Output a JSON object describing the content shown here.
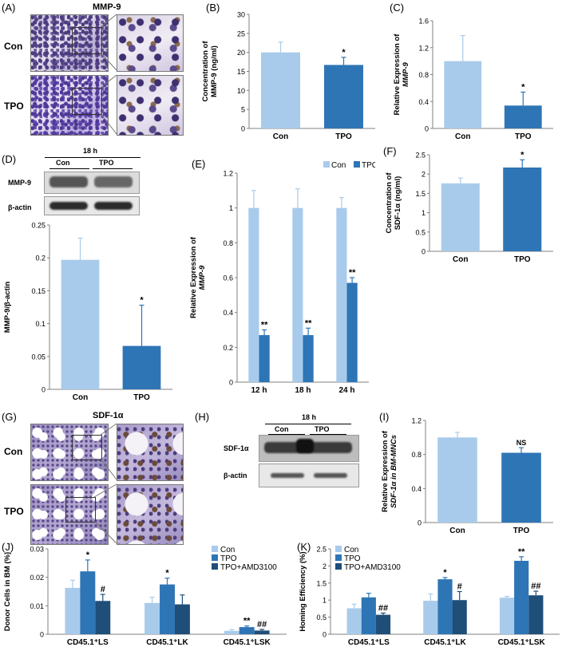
{
  "colors": {
    "con": "#a9cbeb",
    "tpo": "#2e75b6",
    "tpo_amd": "#1f4e79",
    "axis": "#808080"
  },
  "panels": {
    "A": {
      "label": "(A)",
      "title": "MMP-9",
      "rows": [
        "Con",
        "TPO"
      ]
    },
    "B": {
      "label": "(B)"
    },
    "C": {
      "label": "(C)"
    },
    "D": {
      "label": "(D)",
      "time": "18 h",
      "lanes": [
        "Con",
        "TPO"
      ],
      "bands": [
        "MMP-9",
        "β-actin"
      ]
    },
    "E": {
      "label": "(E)"
    },
    "F": {
      "label": "(F)"
    },
    "G": {
      "label": "(G)",
      "title": "SDF-1α",
      "rows": [
        "Con",
        "TPO"
      ]
    },
    "H": {
      "label": "(H)",
      "time": "18 h",
      "lanes": [
        "Con",
        "TPO"
      ],
      "bands": [
        "SDF-1α",
        "β-actin"
      ]
    },
    "I": {
      "label": "(I)"
    },
    "J": {
      "label": "(J)"
    },
    "K": {
      "label": "(K)"
    }
  },
  "chart_data": [
    {
      "id": "B",
      "type": "bar",
      "categories": [
        "Con",
        "TPO"
      ],
      "values": [
        20.0,
        16.7
      ],
      "errors": [
        2.7,
        2.0
      ],
      "stars": [
        "",
        "*"
      ],
      "ylabel": [
        "Concentration of",
        "MMP-9 (ng/ml)"
      ],
      "ylim": [
        0,
        30
      ],
      "ticks": [
        "0",
        "5",
        "10",
        "15",
        "20",
        "25",
        "30"
      ]
    },
    {
      "id": "C",
      "type": "bar",
      "categories": [
        "Con",
        "TPO"
      ],
      "values": [
        1.0,
        0.34
      ],
      "errors": [
        0.38,
        0.2
      ],
      "stars": [
        "",
        "*"
      ],
      "ylabel": [
        "Relative Expression of",
        "MMP-9"
      ],
      "ylim": [
        0,
        1.6
      ],
      "ticks": [
        "0",
        "0.4",
        "0.8",
        "1.2",
        "1.6"
      ]
    },
    {
      "id": "D",
      "type": "bar",
      "categories": [
        "Con",
        "TPO"
      ],
      "values": [
        0.197,
        0.066
      ],
      "errors": [
        0.033,
        0.062
      ],
      "stars": [
        "",
        "*"
      ],
      "ylabel": [
        "MMP-9/β-actin"
      ],
      "ylim": [
        0,
        0.25
      ],
      "ticks": [
        "0",
        "0.05",
        "0.1",
        "0.15",
        "0.2",
        "0.25"
      ]
    },
    {
      "id": "E",
      "type": "bar",
      "categories": [
        "12 h",
        "18 h",
        "24 h"
      ],
      "series": [
        {
          "name": "Con",
          "values": [
            1.0,
            1.0,
            1.0
          ],
          "errors": [
            0.1,
            0.11,
            0.06
          ],
          "stars": [
            "",
            "",
            ""
          ]
        },
        {
          "name": "TPO",
          "values": [
            0.27,
            0.27,
            0.57
          ],
          "errors": [
            0.03,
            0.04,
            0.03
          ],
          "stars": [
            "**",
            "**",
            "**"
          ]
        }
      ],
      "ylabel": [
        "Relative Expression of",
        "MMP-9"
      ],
      "ylim": [
        0,
        1.2
      ],
      "ticks": [
        "0",
        "0.2",
        "0.4",
        "0.6",
        "0.8",
        "1",
        "1.2"
      ],
      "legend": "top-right"
    },
    {
      "id": "F",
      "type": "bar",
      "categories": [
        "Con",
        "TPO"
      ],
      "values": [
        1.76,
        2.17
      ],
      "errors": [
        0.14,
        0.2
      ],
      "stars": [
        "",
        "*"
      ],
      "ylabel": [
        "Concentration of",
        "SDF-1α (ng/ml)"
      ],
      "ylim": [
        0,
        2.5
      ],
      "ticks": [
        "0",
        "0.5",
        "1",
        "1.5",
        "2",
        "2.5"
      ]
    },
    {
      "id": "I",
      "type": "bar",
      "categories": [
        "Con",
        "TPO"
      ],
      "values": [
        1.0,
        0.82
      ],
      "errors": [
        0.06,
        0.06
      ],
      "stars": [
        "",
        "NS"
      ],
      "ylabel": [
        "Relative Expression of",
        "SDF-1α in BM-MNCs"
      ],
      "ylim": [
        0,
        1.2
      ],
      "ticks": [
        "0",
        "0.4",
        "0.8",
        "1.2"
      ]
    },
    {
      "id": "J",
      "type": "bar",
      "categories": [
        "CD45.1⁺LS",
        "CD45.1⁺LK",
        "CD45.1⁺LSK"
      ],
      "series": [
        {
          "name": "Con",
          "values": [
            0.0163,
            0.011,
            0.0012
          ],
          "errors": [
            0.0027,
            0.002,
            0.0004
          ],
          "stars": [
            "",
            "",
            ""
          ]
        },
        {
          "name": "TPO",
          "values": [
            0.0221,
            0.0175,
            0.0025
          ],
          "errors": [
            0.004,
            0.0022,
            0.0004
          ],
          "stars": [
            "*",
            "*",
            "**"
          ]
        },
        {
          "name": "TPO+AMD3100",
          "values": [
            0.0117,
            0.0105,
            0.0013
          ],
          "errors": [
            0.0023,
            0.0033,
            0.0004
          ],
          "stars": [
            "#",
            "",
            "##"
          ]
        }
      ],
      "ylabel": [
        "Donor Cells in BM (%)"
      ],
      "ylim": [
        0,
        0.03
      ],
      "ticks": [
        "0",
        "0.01",
        "0.02",
        "0.03"
      ],
      "legend": "top-right"
    },
    {
      "id": "K",
      "type": "bar",
      "categories": [
        "CD45.1⁺LS",
        "CD45.1⁺LK",
        "CD45.1⁺LSK"
      ],
      "series": [
        {
          "name": "Con",
          "values": [
            0.76,
            0.98,
            1.07
          ],
          "errors": [
            0.12,
            0.2,
            0.04
          ],
          "stars": [
            "",
            "",
            ""
          ]
        },
        {
          "name": "TPO",
          "values": [
            1.08,
            1.61,
            2.15
          ],
          "errors": [
            0.12,
            0.05,
            0.12
          ],
          "stars": [
            "",
            "*",
            "**"
          ]
        },
        {
          "name": "TPO+AMD3100",
          "values": [
            0.57,
            1.0,
            1.14
          ],
          "errors": [
            0.05,
            0.25,
            0.12
          ],
          "stars": [
            "##",
            "#",
            "##"
          ]
        }
      ],
      "ylabel": [
        "Homing Efficiency (%)"
      ],
      "ylim": [
        0,
        2.5
      ],
      "ticks": [
        "0",
        "0.5",
        "1",
        "1.5",
        "2",
        "2.5"
      ],
      "legend": "top-left"
    }
  ]
}
